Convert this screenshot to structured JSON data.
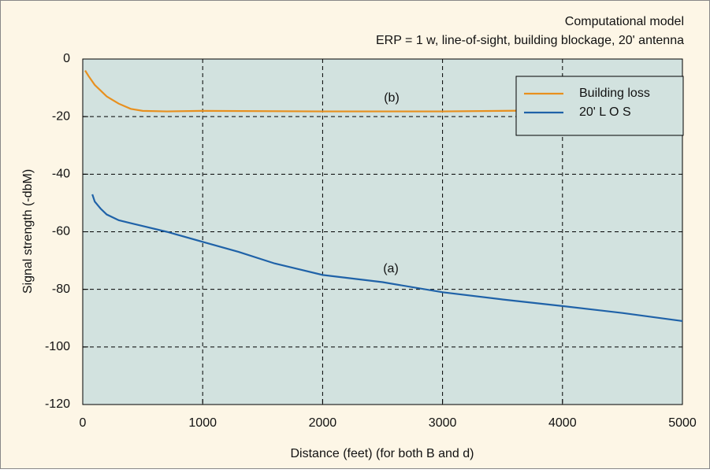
{
  "chart_data": {
    "type": "line",
    "title": "Computational model",
    "subtitle": "ERP = 1 w, line-of-sight, building blockage, 20' antenna",
    "x_label": "Distance (feet) (for both B and d)",
    "y_label": "Signal strength (-dbM)",
    "xlim": [
      0,
      5000
    ],
    "xticks": [
      0,
      1000,
      2000,
      3000,
      4000,
      5000
    ],
    "ylim": [
      -120,
      0
    ],
    "yticks": [
      0,
      -20,
      -40,
      -60,
      -80,
      -100,
      -120
    ],
    "grid": true,
    "legend": "upper right",
    "annotations": [
      "(b)",
      "(a)"
    ],
    "series": [
      {
        "name": "Building loss",
        "color": "#e8901e",
        "x": [
          20,
          50,
          100,
          200,
          300,
          400,
          500,
          700,
          1000,
          2000,
          3000,
          4000,
          5000
        ],
        "values": [
          -4,
          -6,
          -9,
          -13,
          -15.5,
          -17.3,
          -18,
          -18.2,
          -18,
          -18.2,
          -18.2,
          -17.8,
          -17.5
        ]
      },
      {
        "name": "20' L O S",
        "color": "#1f62a8",
        "x": [
          80,
          100,
          150,
          200,
          300,
          400,
          500,
          700,
          1000,
          1300,
          1600,
          2000,
          2500,
          3000,
          3500,
          4000,
          4500,
          5000
        ],
        "values": [
          -47,
          -49.5,
          -52,
          -54,
          -56,
          -57,
          -58,
          -60,
          -63.5,
          -67,
          -71,
          -75,
          -77.5,
          -81,
          -83.5,
          -85.8,
          -88.2,
          -91
        ]
      }
    ]
  }
}
